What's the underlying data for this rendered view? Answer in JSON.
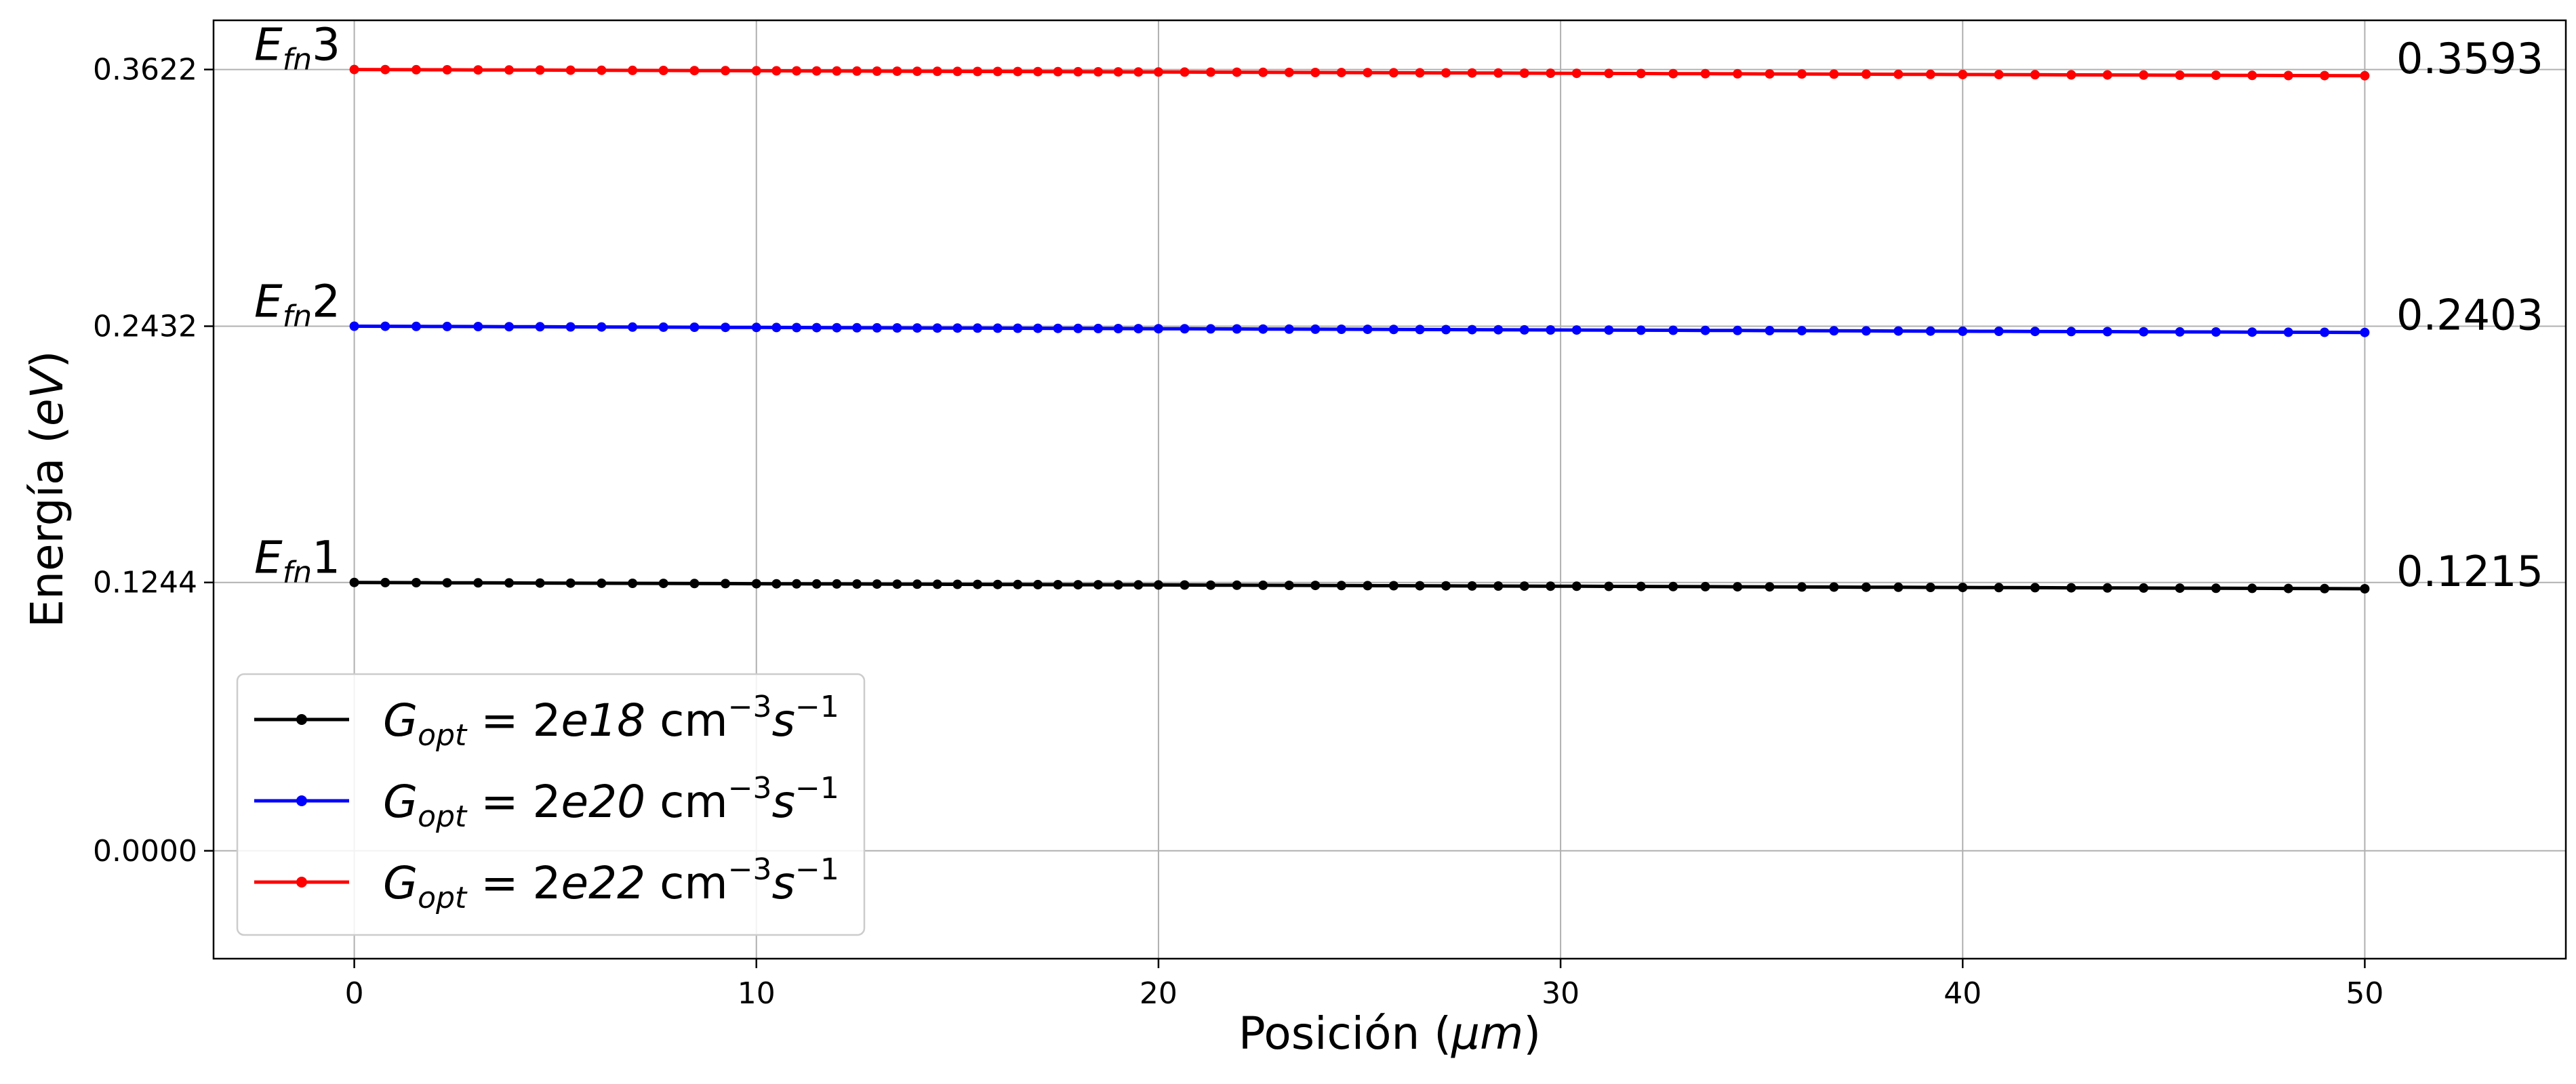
{
  "chart_data": {
    "type": "line",
    "title": "",
    "xlabel": "Posición (",
    "xlabel_unit": "μm",
    "xlabel_close": ")",
    "ylabel": "Energía (",
    "ylabel_unit": "eV",
    "ylabel_close": ")",
    "xlim": [
      -3.5,
      55
    ],
    "ylim": [
      -0.05,
      0.385
    ],
    "x_ticks": [
      0,
      10,
      20,
      30,
      40,
      50
    ],
    "x_tick_labels": [
      "0",
      "10",
      "20",
      "30",
      "40",
      "50"
    ],
    "y_ticks": [
      0.0,
      0.1244,
      0.2432,
      0.3622
    ],
    "y_tick_labels": [
      "0.0000",
      "0.1244",
      "0.2432",
      "0.3622"
    ],
    "grid": true,
    "legend_position": "lower-left",
    "x_points": [
      0,
      0.77,
      1.54,
      2.31,
      3.08,
      3.85,
      4.62,
      5.38,
      6.15,
      6.92,
      7.69,
      8.46,
      9.23,
      10,
      10.5,
      11,
      11.5,
      12,
      12.5,
      13,
      13.5,
      14,
      14.5,
      15,
      15.5,
      16,
      16.5,
      17,
      17.5,
      18,
      18.5,
      19,
      19.5,
      20,
      20.65,
      21.3,
      21.95,
      22.6,
      23.25,
      23.9,
      24.55,
      25.2,
      25.85,
      26.5,
      27.15,
      27.8,
      28.45,
      29.1,
      29.75,
      30.4,
      31.2,
      32,
      32.8,
      33.6,
      34.4,
      35.2,
      36,
      36.8,
      37.6,
      38.4,
      39.2,
      40,
      40.9,
      41.8,
      42.7,
      43.6,
      44.5,
      45.4,
      46.3,
      47.2,
      48.1,
      49,
      50
    ],
    "series": [
      {
        "name": "G_opt = 2e18",
        "color": "#000000",
        "start": 0.1244,
        "end": 0.1215,
        "start_label": "E",
        "start_label_sub": "fn",
        "start_label_num": "1",
        "end_label": "0.1215",
        "legend_base": "G",
        "legend_sub": "opt",
        "legend_eq": " = 2",
        "legend_exp": "e18",
        "legend_unit": " cm",
        "legend_unit_exp": "−3",
        "legend_s": "s",
        "legend_s_exp": "−1"
      },
      {
        "name": "G_opt = 2e20",
        "color": "#0000ff",
        "start": 0.2432,
        "end": 0.2403,
        "start_label": "E",
        "start_label_sub": "fn",
        "start_label_num": "2",
        "end_label": "0.2403",
        "legend_base": "G",
        "legend_sub": "opt",
        "legend_eq": " = 2",
        "legend_exp": "e20",
        "legend_unit": " cm",
        "legend_unit_exp": "−3",
        "legend_s": "s",
        "legend_s_exp": "−1"
      },
      {
        "name": "G_opt = 2e22",
        "color": "#ff0000",
        "start": 0.3622,
        "end": 0.3593,
        "start_label": "E",
        "start_label_sub": "fn",
        "start_label_num": "3",
        "end_label": "0.3593",
        "legend_base": "G",
        "legend_sub": "opt",
        "legend_eq": " = 2",
        "legend_exp": "e22",
        "legend_unit": " cm",
        "legend_unit_exp": "−3",
        "legend_s": "s",
        "legend_s_exp": "−1"
      }
    ]
  }
}
